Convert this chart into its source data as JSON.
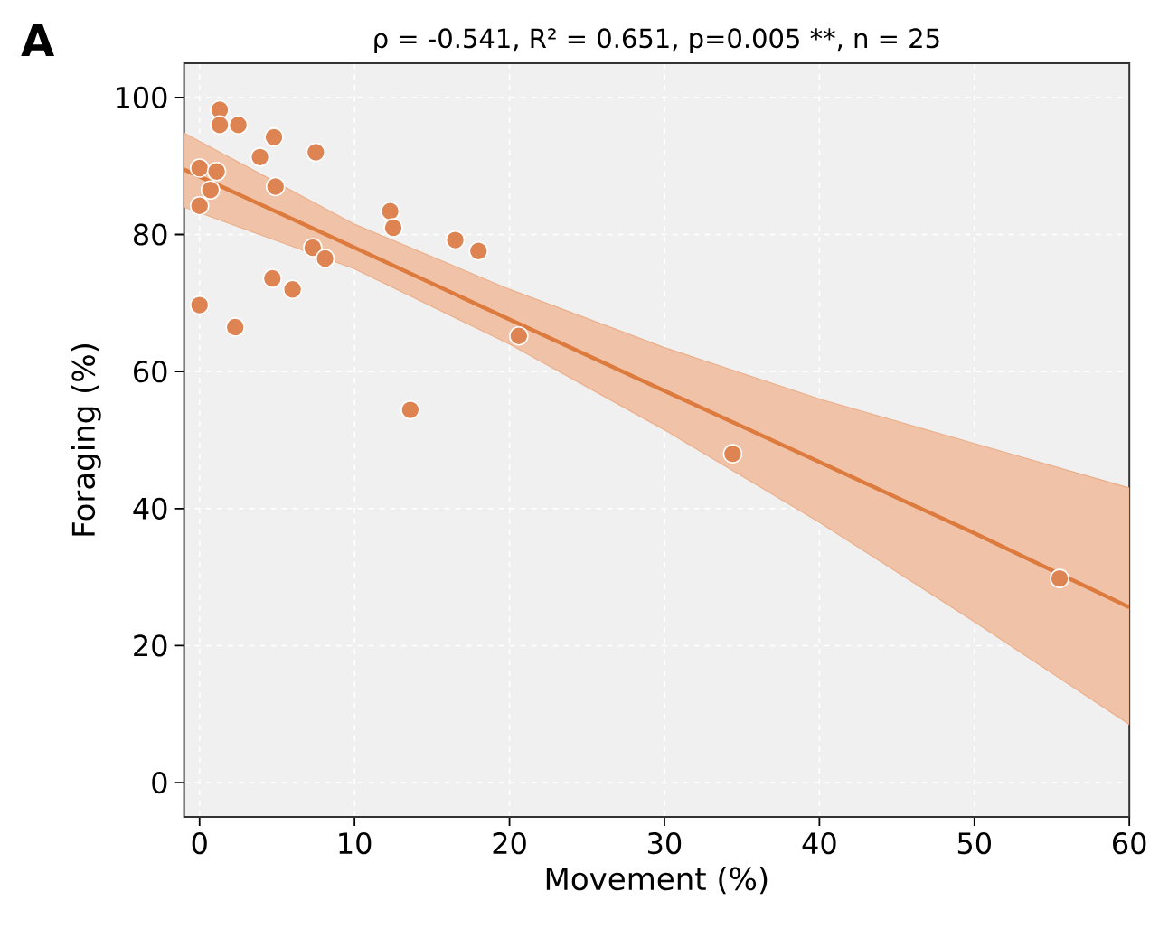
{
  "chart_data": {
    "type": "scatter",
    "title": "ρ = -0.541,  R² = 0.651,  p=0.005 **,  n = 25",
    "xlabel": "Movement (%)",
    "ylabel": "Foraging (%)",
    "annotations": [
      "A"
    ],
    "series": [
      {
        "color": "#dd8452",
        "marker": "circle",
        "x": [
          0,
          0,
          0,
          0.7,
          1.1,
          1.3,
          1.3,
          2.5,
          2.3,
          3.9,
          4.8,
          4.9,
          4.7,
          6.0,
          7.5,
          7.3,
          8.1,
          12.3,
          12.5,
          13.6,
          16.5,
          18.0,
          20.6,
          34.4,
          55.5
        ],
        "values": [
          89.7,
          84.2,
          69.7,
          86.5,
          89.2,
          98.2,
          96,
          96,
          66.5,
          91.3,
          94.2,
          87,
          73.6,
          72,
          92,
          78.1,
          76.5,
          83.4,
          81,
          54.4,
          79.2,
          77.6,
          65.2,
          48,
          29.8
        ]
      },
      {
        "type": "line",
        "color": "#dd7a3e",
        "marker": "none",
        "line_style": "solid",
        "x": [
          -1,
          10,
          20,
          30,
          40,
          50,
          60
        ],
        "values": [
          89.5,
          78.1,
          67.6,
          57.2,
          46.8,
          36.4,
          25.6
        ],
        "lower": [
          84,
          75,
          64,
          51.5,
          38,
          23.5,
          8.5
        ],
        "upper": [
          94.8,
          81.5,
          72,
          63.5,
          56,
          49.5,
          43
        ]
      }
    ],
    "xlim": [
      -1,
      60
    ],
    "ylim": [
      -5,
      105
    ],
    "xticks": [
      0,
      10,
      20,
      30,
      40,
      50,
      60
    ],
    "yticks": [
      0,
      20,
      40,
      60,
      80,
      100
    ],
    "grid": true
  }
}
